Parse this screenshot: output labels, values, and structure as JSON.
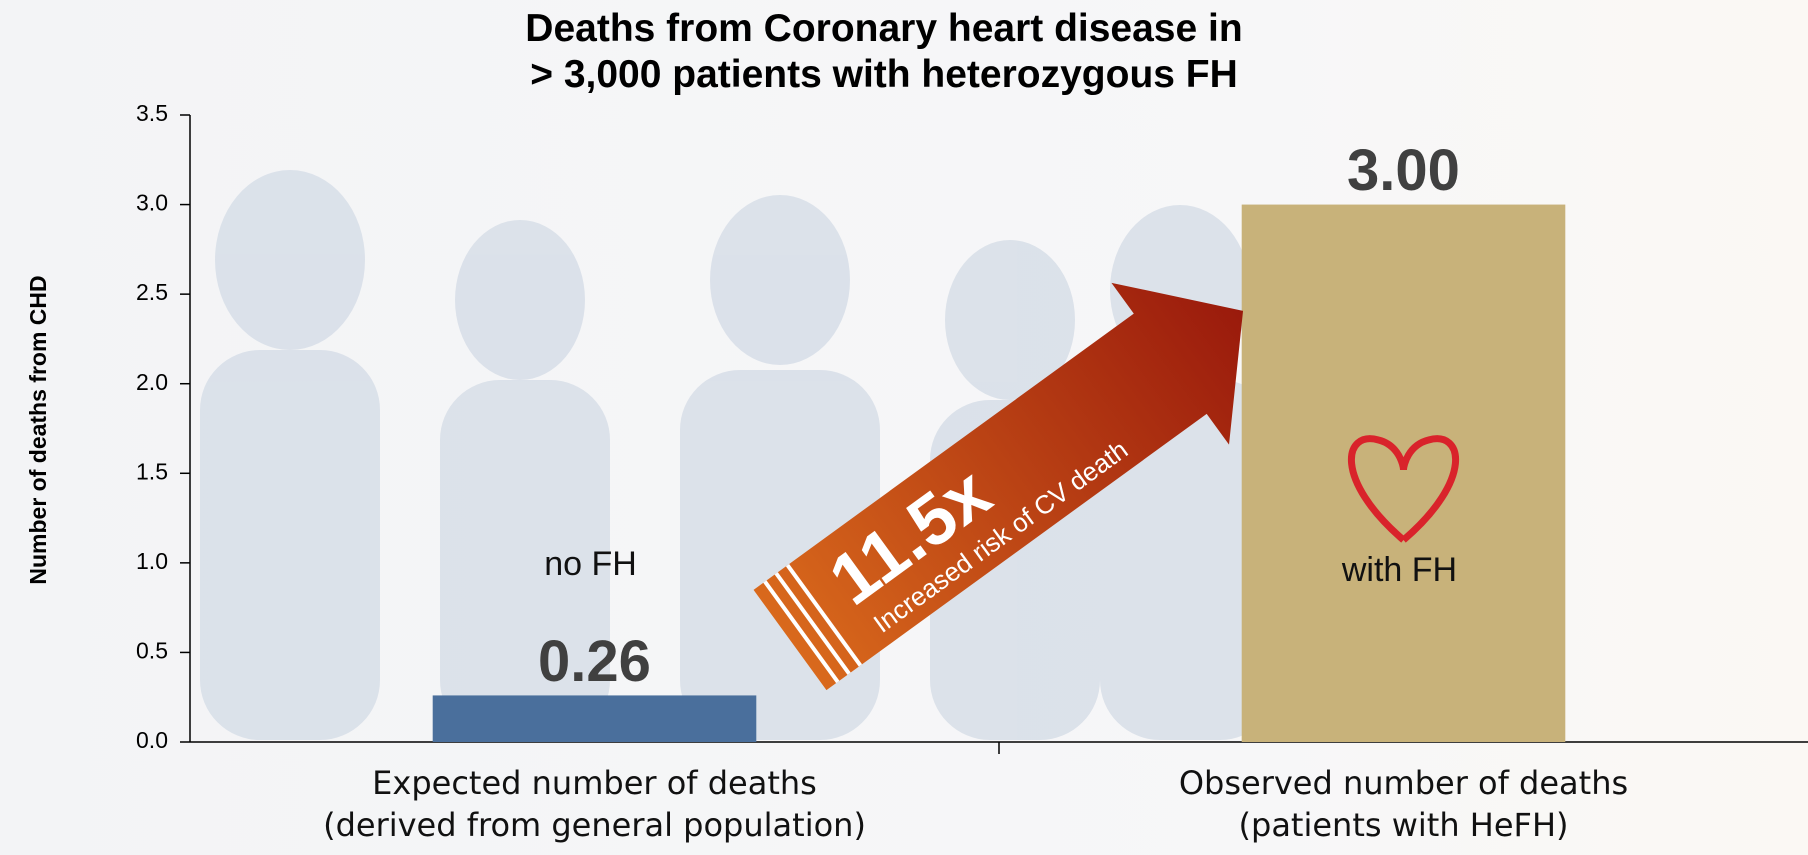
{
  "chart_data": {
    "type": "bar",
    "title": "Deaths from Coronary heart disease in\n> 3,000 patients with heterozygous FH",
    "y_label": "Number of deaths from CHD",
    "categories": [
      "Expected number of deaths\n(derived from general population)",
      "Observed number of deaths\n(patients with HeFH)"
    ],
    "values": [
      0.26,
      3
    ],
    "value_labels": [
      "0.26",
      "3.00"
    ],
    "colors": [
      "#4a6f9c",
      "#c8b27a"
    ],
    "ylim": [
      0,
      3.5
    ],
    "yticks": [
      {
        "value": 0,
        "label": "0.0"
      },
      0.5,
      {
        "value": 1,
        "label": "1.0"
      },
      1.5,
      {
        "value": 2,
        "label": "2.0"
      },
      2.5,
      {
        "value": 3,
        "label": "3.0"
      },
      3.5
    ],
    "grid": false,
    "annotations": {
      "bar_labels": [
        "no FH",
        "with FH"
      ],
      "ratio": "11.5x",
      "ratio_text": "Increased risk of CV death"
    }
  }
}
